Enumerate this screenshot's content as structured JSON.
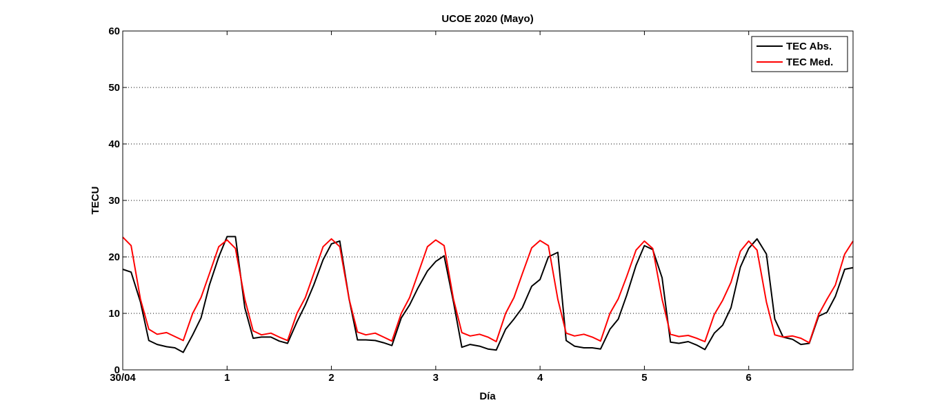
{
  "chart_data": {
    "type": "line",
    "title": "UCOE 2020 (Mayo)",
    "xlabel": "Día",
    "ylabel": "TECU",
    "xlim": [
      0,
      7.0
    ],
    "ylim": [
      0,
      60
    ],
    "x_ticks": [
      0,
      1,
      2,
      3,
      4,
      5,
      6
    ],
    "x_tick_labels": [
      "30/04",
      "1",
      "2",
      "3",
      "4",
      "5",
      "6"
    ],
    "y_ticks": [
      0,
      10,
      20,
      30,
      40,
      50,
      60
    ],
    "y_tick_labels": [
      "0",
      "10",
      "20",
      "30",
      "40",
      "50",
      "60"
    ],
    "grid": "horizontal-dotted",
    "legend": "top-right",
    "series": [
      {
        "name": "TEC Abs.",
        "color": "#000000",
        "points": [
          [
            0.0,
            17.8
          ],
          [
            0.08,
            17.3
          ],
          [
            0.17,
            12.0
          ],
          [
            0.25,
            5.2
          ],
          [
            0.33,
            4.5
          ],
          [
            0.42,
            4.1
          ],
          [
            0.5,
            3.9
          ],
          [
            0.58,
            3.1
          ],
          [
            0.67,
            6.2
          ],
          [
            0.75,
            9.2
          ],
          [
            0.83,
            15.0
          ],
          [
            0.92,
            20.0
          ],
          [
            1.0,
            23.6
          ],
          [
            1.08,
            23.6
          ],
          [
            1.17,
            11.0
          ],
          [
            1.25,
            5.6
          ],
          [
            1.33,
            5.8
          ],
          [
            1.42,
            5.8
          ],
          [
            1.5,
            5.1
          ],
          [
            1.58,
            4.7
          ],
          [
            1.67,
            8.5
          ],
          [
            1.75,
            11.5
          ],
          [
            1.83,
            15.0
          ],
          [
            1.92,
            19.5
          ],
          [
            2.0,
            22.3
          ],
          [
            2.08,
            22.8
          ],
          [
            2.17,
            12.5
          ],
          [
            2.25,
            5.3
          ],
          [
            2.33,
            5.3
          ],
          [
            2.42,
            5.2
          ],
          [
            2.5,
            4.8
          ],
          [
            2.58,
            4.3
          ],
          [
            2.67,
            9.2
          ],
          [
            2.75,
            11.5
          ],
          [
            2.83,
            14.5
          ],
          [
            2.92,
            17.5
          ],
          [
            3.0,
            19.2
          ],
          [
            3.08,
            20.2
          ],
          [
            3.17,
            12.0
          ],
          [
            3.25,
            4.0
          ],
          [
            3.33,
            4.5
          ],
          [
            3.42,
            4.2
          ],
          [
            3.5,
            3.7
          ],
          [
            3.58,
            3.5
          ],
          [
            3.67,
            7.2
          ],
          [
            3.75,
            9.0
          ],
          [
            3.83,
            11.0
          ],
          [
            3.92,
            14.8
          ],
          [
            4.0,
            16.0
          ],
          [
            4.08,
            20.0
          ],
          [
            4.17,
            20.8
          ],
          [
            4.25,
            5.2
          ],
          [
            4.33,
            4.2
          ],
          [
            4.42,
            3.9
          ],
          [
            4.5,
            3.9
          ],
          [
            4.58,
            3.7
          ],
          [
            4.67,
            7.2
          ],
          [
            4.75,
            9.0
          ],
          [
            4.83,
            13.2
          ],
          [
            4.92,
            18.5
          ],
          [
            5.0,
            22.0
          ],
          [
            5.08,
            21.3
          ],
          [
            5.17,
            16.3
          ],
          [
            5.25,
            4.9
          ],
          [
            5.33,
            4.7
          ],
          [
            5.42,
            5.0
          ],
          [
            5.5,
            4.4
          ],
          [
            5.58,
            3.6
          ],
          [
            5.67,
            6.5
          ],
          [
            5.75,
            7.9
          ],
          [
            5.83,
            11.0
          ],
          [
            5.92,
            18.2
          ],
          [
            6.0,
            21.5
          ],
          [
            6.08,
            23.2
          ],
          [
            6.17,
            20.5
          ],
          [
            6.25,
            9.0
          ],
          [
            6.33,
            5.8
          ],
          [
            6.42,
            5.4
          ],
          [
            6.5,
            4.5
          ],
          [
            6.58,
            4.7
          ],
          [
            6.67,
            9.5
          ],
          [
            6.75,
            10.2
          ],
          [
            6.83,
            13.0
          ],
          [
            6.92,
            17.8
          ],
          [
            7.0,
            18.1
          ]
        ]
      },
      {
        "name": "TEC Med.",
        "color": "#ff0000",
        "points": [
          [
            0.0,
            23.5
          ],
          [
            0.08,
            22.0
          ],
          [
            0.17,
            12.5
          ],
          [
            0.25,
            7.2
          ],
          [
            0.33,
            6.3
          ],
          [
            0.42,
            6.6
          ],
          [
            0.5,
            5.9
          ],
          [
            0.58,
            5.2
          ],
          [
            0.67,
            10.0
          ],
          [
            0.75,
            12.8
          ],
          [
            0.83,
            17.0
          ],
          [
            0.92,
            21.8
          ],
          [
            1.0,
            23.0
          ],
          [
            1.08,
            21.5
          ],
          [
            1.17,
            12.5
          ],
          [
            1.25,
            6.9
          ],
          [
            1.33,
            6.2
          ],
          [
            1.42,
            6.5
          ],
          [
            1.5,
            5.8
          ],
          [
            1.58,
            5.2
          ],
          [
            1.67,
            10.0
          ],
          [
            1.75,
            12.8
          ],
          [
            1.83,
            17.0
          ],
          [
            1.92,
            21.8
          ],
          [
            2.0,
            23.2
          ],
          [
            2.08,
            21.8
          ],
          [
            2.17,
            12.5
          ],
          [
            2.25,
            6.7
          ],
          [
            2.33,
            6.2
          ],
          [
            2.42,
            6.5
          ],
          [
            2.5,
            5.8
          ],
          [
            2.58,
            5.1
          ],
          [
            2.67,
            10.0
          ],
          [
            2.75,
            12.8
          ],
          [
            2.83,
            17.0
          ],
          [
            2.92,
            21.8
          ],
          [
            3.0,
            23.0
          ],
          [
            3.08,
            22.0
          ],
          [
            3.17,
            12.5
          ],
          [
            3.25,
            6.6
          ],
          [
            3.33,
            6.0
          ],
          [
            3.42,
            6.3
          ],
          [
            3.5,
            5.8
          ],
          [
            3.58,
            5.0
          ],
          [
            3.67,
            10.0
          ],
          [
            3.75,
            12.8
          ],
          [
            3.83,
            17.0
          ],
          [
            3.92,
            21.6
          ],
          [
            4.0,
            22.9
          ],
          [
            4.08,
            22.0
          ],
          [
            4.17,
            12.5
          ],
          [
            4.25,
            6.5
          ],
          [
            4.33,
            6.0
          ],
          [
            4.42,
            6.3
          ],
          [
            4.5,
            5.8
          ],
          [
            4.58,
            5.1
          ],
          [
            4.67,
            10.0
          ],
          [
            4.75,
            12.6
          ],
          [
            4.83,
            16.5
          ],
          [
            4.92,
            21.2
          ],
          [
            5.0,
            22.8
          ],
          [
            5.08,
            21.5
          ],
          [
            5.17,
            12.5
          ],
          [
            5.25,
            6.3
          ],
          [
            5.33,
            5.9
          ],
          [
            5.42,
            6.1
          ],
          [
            5.5,
            5.6
          ],
          [
            5.58,
            5.0
          ],
          [
            5.67,
            9.8
          ],
          [
            5.75,
            12.3
          ],
          [
            5.83,
            15.5
          ],
          [
            5.92,
            21.0
          ],
          [
            6.0,
            22.8
          ],
          [
            6.08,
            21.2
          ],
          [
            6.17,
            12.0
          ],
          [
            6.25,
            6.2
          ],
          [
            6.33,
            5.8
          ],
          [
            6.42,
            6.0
          ],
          [
            6.5,
            5.6
          ],
          [
            6.58,
            4.8
          ],
          [
            6.67,
            9.8
          ],
          [
            6.75,
            12.5
          ],
          [
            6.83,
            15.0
          ],
          [
            6.92,
            20.5
          ],
          [
            7.0,
            22.8
          ]
        ]
      }
    ]
  }
}
